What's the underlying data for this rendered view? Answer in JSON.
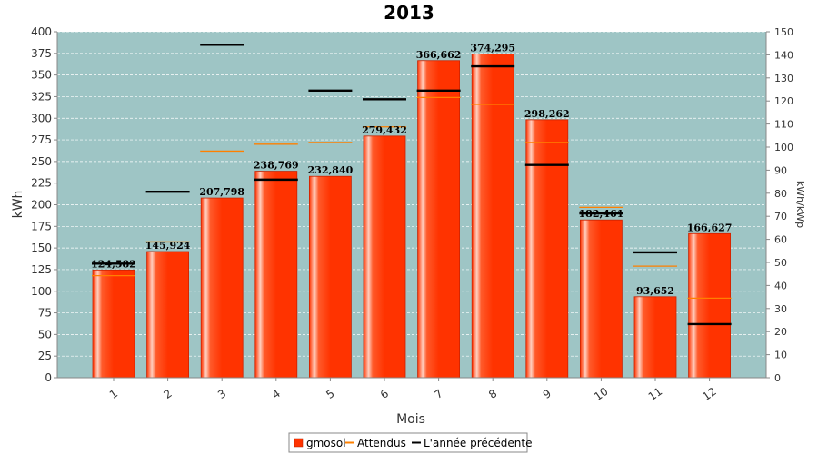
{
  "chart_data": {
    "type": "bar",
    "title": "2013",
    "xlabel": "Mois",
    "ylabel": "kWh",
    "y2label": "kWh/kWp",
    "categories": [
      "1",
      "2",
      "3",
      "4",
      "5",
      "6",
      "7",
      "8",
      "9",
      "10",
      "11",
      "12"
    ],
    "ylim": [
      0,
      400
    ],
    "yticks": [
      0,
      25,
      50,
      75,
      100,
      125,
      150,
      175,
      200,
      225,
      250,
      275,
      300,
      325,
      350,
      375,
      400
    ],
    "y2lim": [
      0,
      150
    ],
    "y2ticks": [
      0,
      10,
      20,
      30,
      40,
      50,
      60,
      70,
      80,
      90,
      100,
      110,
      120,
      130,
      140,
      150
    ],
    "series": [
      {
        "name": "gmosol",
        "type": "bar",
        "color": "#ff3300",
        "values": [
          124.582,
          145.924,
          207.798,
          238.769,
          232.84,
          279.432,
          366.662,
          374.295,
          298.262,
          182.461,
          93.652,
          166.627
        ],
        "labels": [
          "124,582",
          "145,924",
          "207,798",
          "238,769",
          "232,840",
          "279,432",
          "366,662",
          "374,295",
          "298,262",
          "182,461",
          "93,652",
          "166,627"
        ]
      },
      {
        "name": "Attendus",
        "type": "marker",
        "axis": "kWh",
        "color": "#ff8000",
        "values": [
          118,
          157,
          262,
          270,
          272,
          290,
          324,
          316,
          272,
          197,
          129,
          92
        ]
      },
      {
        "name": "L'année précédente",
        "type": "marker",
        "axis": "kWh",
        "color": "#000000",
        "values": [
          132,
          215,
          385,
          229,
          332,
          322,
          332,
          360,
          246,
          190,
          145,
          62
        ]
      }
    ],
    "legend": "bottom-center",
    "grid": true,
    "plot_background": "#9ec5c5",
    "grid_color": "#ffffff"
  }
}
